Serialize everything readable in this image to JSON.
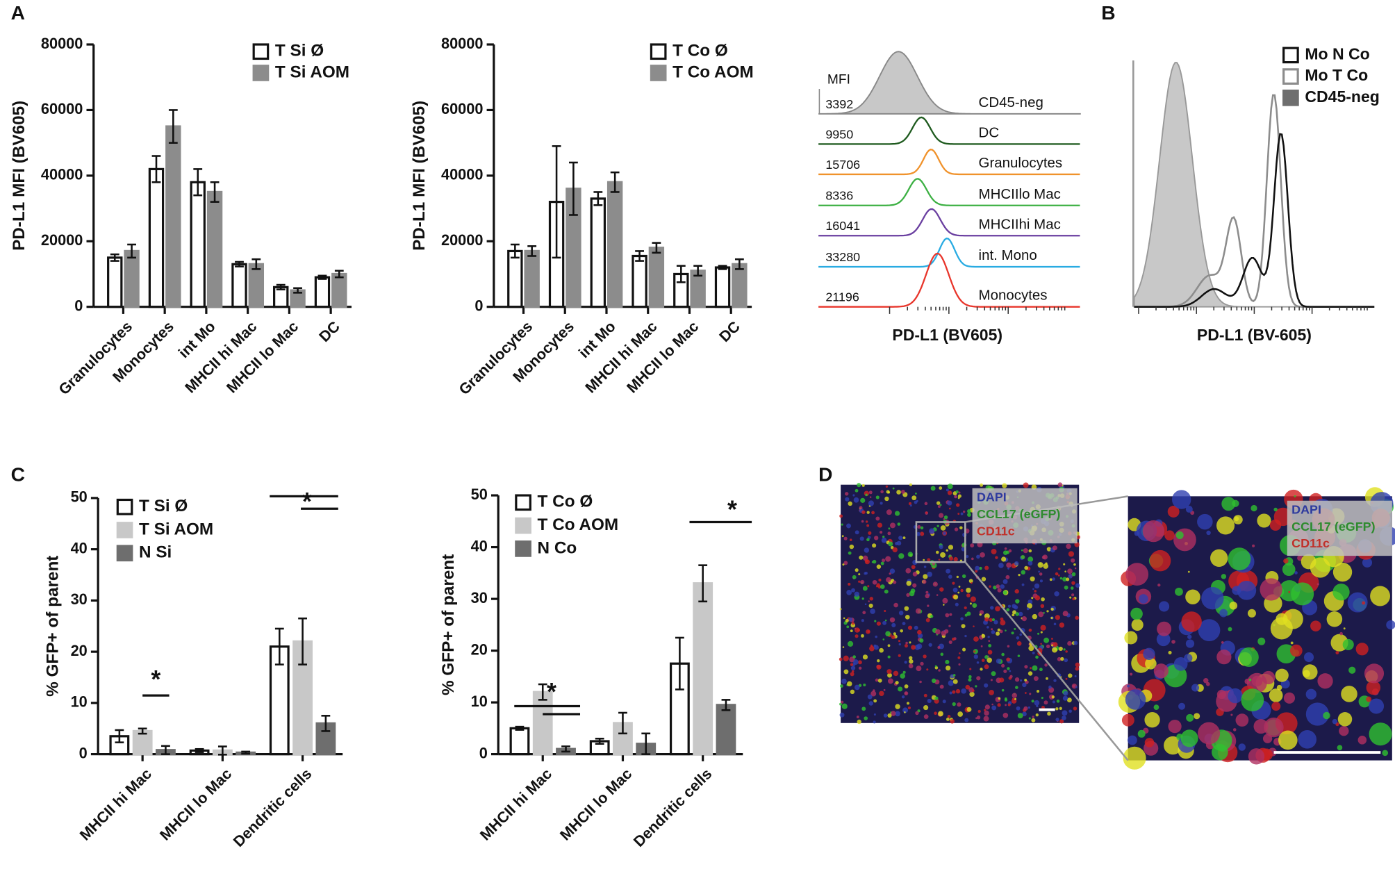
{
  "panel_labels": [
    "A",
    "B",
    "C",
    "D"
  ],
  "chart_data": [
    {
      "type": "bar",
      "ylabel": "PD-L1 MFI (BV605)",
      "categories": [
        "Granulocytes",
        "Monocytes",
        "int Mo",
        "MHCII hi Mac",
        "MHCII lo Mac",
        "DC"
      ],
      "ylim": [
        0,
        80000
      ],
      "yticks": [
        0,
        20000,
        40000,
        60000,
        80000
      ],
      "series": [
        {
          "name": "T Si Ø",
          "color": "#ffffff",
          "edge": "#111111",
          "values": [
            15000,
            42000,
            38000,
            13000,
            6000,
            9000
          ],
          "errors": [
            1000,
            4000,
            4000,
            700,
            700,
            500
          ]
        },
        {
          "name": "T Si AOM",
          "color": "#8c8c8c",
          "edge": "#8c8c8c",
          "values": [
            17000,
            55000,
            35000,
            13000,
            5000,
            10000
          ],
          "errors": [
            2000,
            5000,
            3000,
            1500,
            700,
            1000
          ]
        }
      ]
    },
    {
      "type": "bar",
      "ylabel": "PD-L1 MFI (BV605)",
      "categories": [
        "Granulocytes",
        "Monocytes",
        "int Mo",
        "MHCII hi Mac",
        "MHCII lo Mac",
        "DC"
      ],
      "ylim": [
        0,
        80000
      ],
      "yticks": [
        0,
        20000,
        40000,
        60000,
        80000
      ],
      "series": [
        {
          "name": "T Co Ø",
          "color": "#ffffff",
          "edge": "#111111",
          "values": [
            17000,
            32000,
            33000,
            15500,
            10000,
            12000
          ],
          "errors": [
            2000,
            17000,
            2000,
            1500,
            2500,
            500
          ]
        },
        {
          "name": "T Co AOM",
          "color": "#8c8c8c",
          "edge": "#8c8c8c",
          "values": [
            17000,
            36000,
            38000,
            18000,
            11000,
            13000
          ],
          "errors": [
            1500,
            8000,
            3000,
            1500,
            1500,
            1500
          ]
        }
      ]
    },
    {
      "type": "flow_overlay",
      "xlabel": "PD-L1 (BV605)",
      "mfi_label": "MFI",
      "populations": [
        {
          "name": "CD45-neg",
          "mfi": 3392,
          "color": "#888888"
        },
        {
          "name": "DC",
          "mfi": 9950,
          "color": "#1e5a1e"
        },
        {
          "name": "Granulocytes",
          "mfi": 15706,
          "color": "#f0922b"
        },
        {
          "name": "MHCIIlo Mac",
          "mfi": 8336,
          "color": "#3cb043"
        },
        {
          "name": "MHCIIhi Mac",
          "mfi": 16041,
          "color": "#6a3fa0"
        },
        {
          "name": "int. Mono",
          "mfi": 33280,
          "color": "#29abe2"
        },
        {
          "name": "Monocytes",
          "mfi": 21196,
          "color": "#e8352b"
        }
      ]
    },
    {
      "type": "flow_histogram",
      "xlabel": "PD-L1 (BV-605)",
      "series": [
        {
          "name": "Mo N Co",
          "color": "#111111"
        },
        {
          "name": "Mo T Co",
          "color": "#8c8c8c"
        },
        {
          "name": "CD45-neg",
          "color": "#6e6e6e"
        }
      ]
    },
    {
      "type": "bar",
      "ylabel": "% GFP+ of parent",
      "categories": [
        "MHCII hi Mac",
        "MHCII lo Mac",
        "Dendritic cells"
      ],
      "ylim": [
        0,
        50
      ],
      "yticks": [
        0,
        10,
        20,
        30,
        40,
        50
      ],
      "annotations": [
        "*",
        "*"
      ],
      "series": [
        {
          "name": "T Si Ø",
          "color": "#ffffff",
          "edge": "#111111",
          "values": [
            3.5,
            0.7,
            21
          ],
          "errors": [
            1.2,
            0.3,
            3.5
          ]
        },
        {
          "name": "T Si AOM",
          "color": "#c8c8c8",
          "edge": "#c8c8c8",
          "values": [
            4.5,
            0.7,
            22
          ],
          "errors": [
            0.5,
            0.8,
            4.5
          ]
        },
        {
          "name": "N Si",
          "color": "#6e6e6e",
          "edge": "#6e6e6e",
          "values": [
            0.8,
            0.3,
            6
          ],
          "errors": [
            0.8,
            0.2,
            1.5
          ]
        }
      ]
    },
    {
      "type": "bar",
      "ylabel": "% GFP+ of parent",
      "categories": [
        "MHCII hi Mac",
        "MHCII lo Mac",
        "Dendritic cells"
      ],
      "ylim": [
        0,
        50
      ],
      "yticks": [
        0,
        10,
        20,
        30,
        40,
        50
      ],
      "annotations": [
        "*",
        "*"
      ],
      "series": [
        {
          "name": "T Co Ø",
          "color": "#ffffff",
          "edge": "#111111",
          "values": [
            5,
            2.5,
            17.5
          ],
          "errors": [
            0.3,
            0.5,
            5
          ]
        },
        {
          "name": "T Co AOM",
          "color": "#c8c8c8",
          "edge": "#c8c8c8",
          "values": [
            12,
            6,
            33
          ],
          "errors": [
            1.5,
            2,
            3.5
          ]
        },
        {
          "name": "N Co",
          "color": "#6e6e6e",
          "edge": "#6e6e6e",
          "values": [
            1,
            2,
            9.5
          ],
          "errors": [
            0.5,
            2,
            1
          ]
        }
      ]
    }
  ],
  "images": {
    "legend": [
      {
        "name": "DAPI",
        "color": "#2e3a9e"
      },
      {
        "name": "CCL17 (eGFP)",
        "color": "#2e8b2e"
      },
      {
        "name": "CD11c",
        "color": "#c0302a"
      }
    ]
  }
}
